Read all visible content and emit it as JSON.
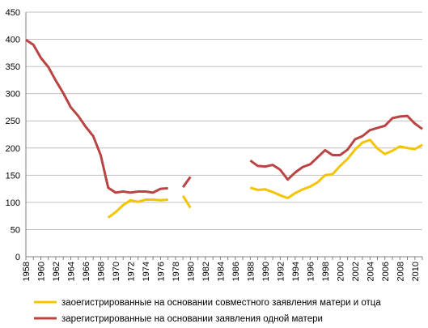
{
  "chart_data": {
    "type": "line",
    "title": "",
    "xlabel": "",
    "ylabel": "",
    "xlim": [
      1958,
      2011
    ],
    "ylim": [
      0,
      450
    ],
    "yticks": [
      0,
      50,
      100,
      150,
      200,
      250,
      300,
      350,
      400,
      450
    ],
    "xticks": [
      1958,
      1960,
      1962,
      1964,
      1966,
      1968,
      1970,
      1972,
      1974,
      1976,
      1978,
      1980,
      1982,
      1984,
      1986,
      1988,
      1990,
      1992,
      1994,
      1996,
      1998,
      2000,
      2002,
      2004,
      2006,
      2008,
      2010
    ],
    "grid": "horizontal",
    "legend_position": "bottom",
    "series": [
      {
        "name": "заоегистрированные на основании совместного заявления матери и отца",
        "color": "#f5c400",
        "points": [
          [
            1969,
            72
          ],
          [
            1970,
            82
          ],
          [
            1971,
            95
          ],
          [
            1972,
            104
          ],
          [
            1973,
            101
          ],
          [
            1974,
            105
          ],
          [
            1975,
            105
          ],
          [
            1976,
            104
          ],
          [
            1977,
            105
          ],
          null,
          [
            1979,
            112
          ],
          [
            1980,
            90
          ],
          null,
          [
            1988,
            127
          ],
          [
            1989,
            123
          ],
          [
            1990,
            124
          ],
          [
            1991,
            119
          ],
          [
            1992,
            113
          ],
          [
            1993,
            108
          ],
          [
            1994,
            117
          ],
          [
            1995,
            124
          ],
          [
            1996,
            129
          ],
          [
            1997,
            137
          ],
          [
            1998,
            150
          ],
          [
            1999,
            152
          ],
          [
            2000,
            167
          ],
          [
            2001,
            180
          ],
          [
            2002,
            197
          ],
          [
            2003,
            210
          ],
          [
            2004,
            215
          ],
          [
            2005,
            199
          ],
          [
            2006,
            189
          ],
          [
            2007,
            195
          ],
          [
            2008,
            203
          ],
          [
            2009,
            200
          ],
          [
            2010,
            198
          ],
          [
            2011,
            206
          ]
        ]
      },
      {
        "name": "зарегистрированные на основании заявления одной матери",
        "color": "#b94443",
        "points": [
          [
            1958,
            399
          ],
          [
            1959,
            390
          ],
          [
            1960,
            366
          ],
          [
            1961,
            349
          ],
          [
            1962,
            324
          ],
          [
            1963,
            301
          ],
          [
            1964,
            275
          ],
          [
            1965,
            259
          ],
          [
            1966,
            239
          ],
          [
            1967,
            222
          ],
          [
            1968,
            187
          ],
          [
            1969,
            127
          ],
          [
            1970,
            118
          ],
          [
            1971,
            120
          ],
          [
            1972,
            118
          ],
          [
            1973,
            120
          ],
          [
            1974,
            120
          ],
          [
            1975,
            118
          ],
          [
            1976,
            125
          ],
          [
            1977,
            126
          ],
          null,
          [
            1979,
            128
          ],
          [
            1980,
            147
          ],
          null,
          [
            1988,
            177
          ],
          [
            1989,
            167
          ],
          [
            1990,
            166
          ],
          [
            1991,
            169
          ],
          [
            1992,
            160
          ],
          [
            1993,
            142
          ],
          [
            1994,
            155
          ],
          [
            1995,
            165
          ],
          [
            1996,
            170
          ],
          [
            1997,
            183
          ],
          [
            1998,
            196
          ],
          [
            1999,
            187
          ],
          [
            2000,
            187
          ],
          [
            2001,
            197
          ],
          [
            2002,
            216
          ],
          [
            2003,
            222
          ],
          [
            2004,
            233
          ],
          [
            2005,
            237
          ],
          [
            2006,
            241
          ],
          [
            2007,
            255
          ],
          [
            2008,
            258
          ],
          [
            2009,
            259
          ],
          [
            2010,
            245
          ],
          [
            2011,
            235
          ]
        ]
      }
    ]
  }
}
